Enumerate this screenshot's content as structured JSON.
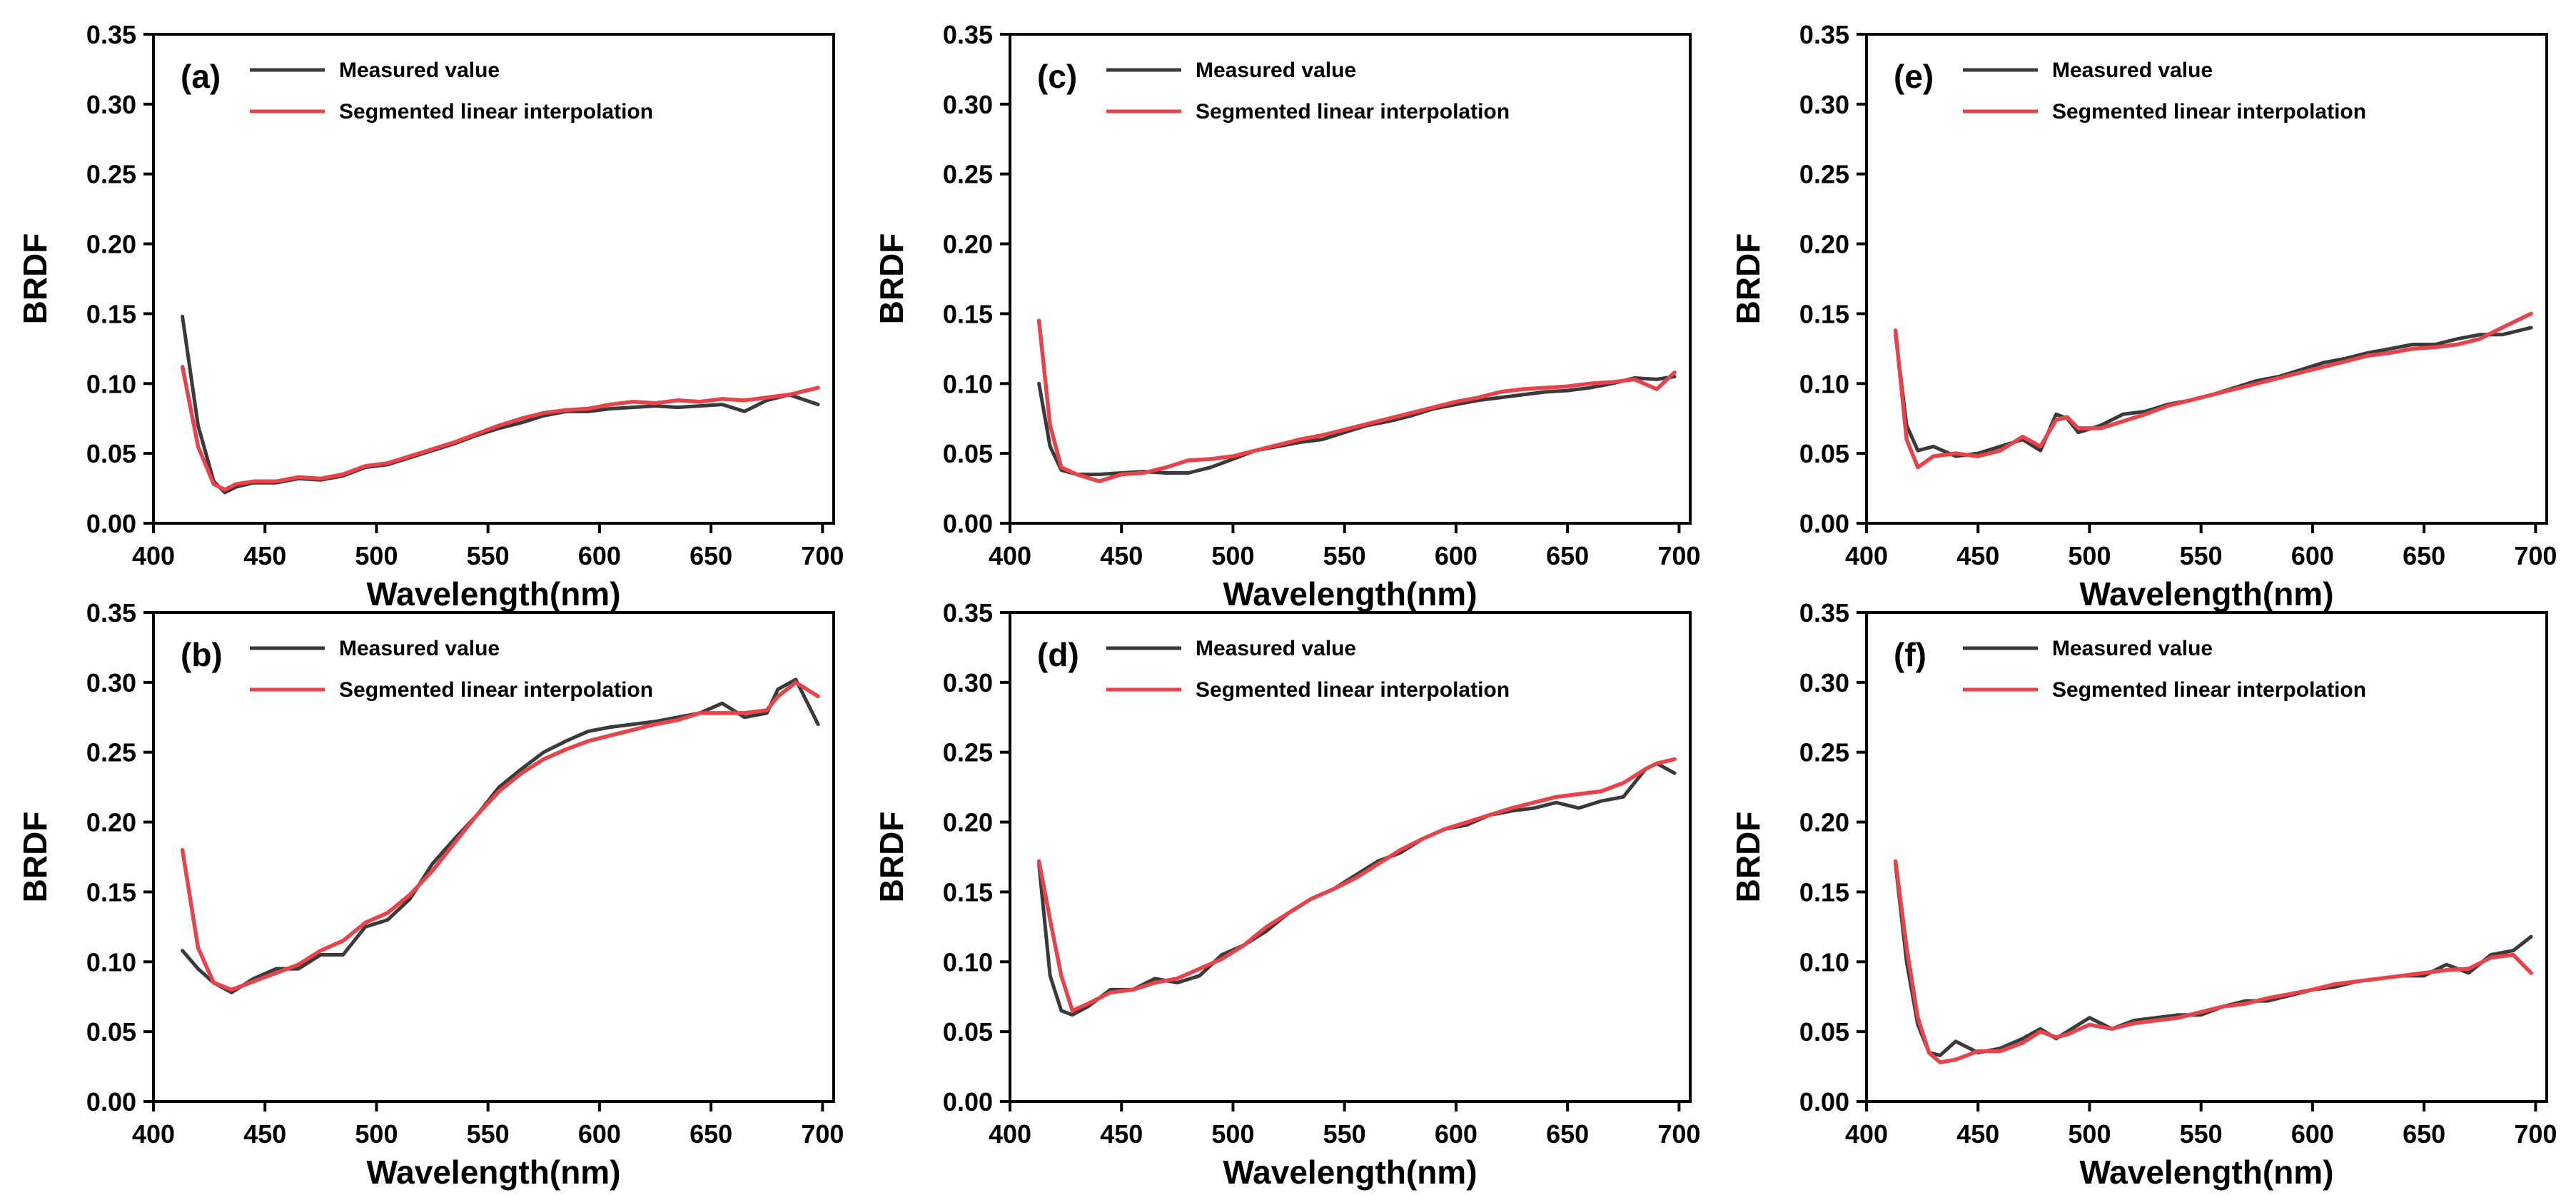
{
  "figure": {
    "colors": {
      "measured": "#3a3a3a",
      "interp": "#e8434a",
      "axis": "#000000"
    }
  },
  "chart_data": [
    {
      "type": "line",
      "panel_label": "(a)",
      "xlabel": "Wavelength(nm)",
      "ylabel": "BRDF",
      "xlim": [
        400,
        705
      ],
      "ylim": [
        0,
        0.35
      ],
      "xticks": [
        400,
        450,
        500,
        550,
        600,
        650,
        700
      ],
      "yticks": [
        0.0,
        0.05,
        0.1,
        0.15,
        0.2,
        0.25,
        0.3,
        0.35
      ],
      "legend_location": "top-left",
      "series": [
        {
          "name": "Measured value",
          "x": [
            413,
            420,
            427,
            432,
            437,
            445,
            455,
            465,
            475,
            485,
            495,
            505,
            515,
            525,
            535,
            545,
            555,
            565,
            575,
            585,
            595,
            605,
            615,
            625,
            635,
            645,
            655,
            665,
            675,
            685,
            698
          ],
          "y": [
            0.148,
            0.07,
            0.03,
            0.022,
            0.026,
            0.029,
            0.029,
            0.032,
            0.031,
            0.034,
            0.04,
            0.042,
            0.047,
            0.052,
            0.057,
            0.063,
            0.068,
            0.072,
            0.077,
            0.08,
            0.08,
            0.082,
            0.083,
            0.084,
            0.083,
            0.084,
            0.085,
            0.08,
            0.088,
            0.092,
            0.085
          ]
        },
        {
          "name": "Segmented linear interpolation",
          "x": [
            413,
            420,
            427,
            432,
            437,
            445,
            455,
            465,
            475,
            485,
            495,
            505,
            515,
            525,
            535,
            545,
            555,
            565,
            575,
            585,
            595,
            605,
            615,
            625,
            635,
            645,
            655,
            665,
            675,
            685,
            698
          ],
          "y": [
            0.112,
            0.055,
            0.028,
            0.024,
            0.028,
            0.03,
            0.03,
            0.033,
            0.032,
            0.035,
            0.041,
            0.043,
            0.048,
            0.053,
            0.058,
            0.064,
            0.07,
            0.075,
            0.079,
            0.081,
            0.082,
            0.085,
            0.087,
            0.086,
            0.088,
            0.087,
            0.089,
            0.088,
            0.09,
            0.092,
            0.097
          ]
        }
      ]
    },
    {
      "type": "line",
      "panel_label": "(b)",
      "xlabel": "Wavelength(nm)",
      "ylabel": "BRDF",
      "xlim": [
        400,
        705
      ],
      "ylim": [
        0,
        0.35
      ],
      "xticks": [
        400,
        450,
        500,
        550,
        600,
        650,
        700
      ],
      "yticks": [
        0.0,
        0.05,
        0.1,
        0.15,
        0.2,
        0.25,
        0.3,
        0.35
      ],
      "legend_location": "top-left",
      "series": [
        {
          "name": "Measured value",
          "x": [
            413,
            420,
            427,
            435,
            445,
            455,
            465,
            475,
            485,
            495,
            505,
            515,
            525,
            535,
            545,
            555,
            565,
            575,
            585,
            595,
            605,
            615,
            625,
            635,
            645,
            655,
            665,
            675,
            680,
            688,
            698
          ],
          "y": [
            0.108,
            0.095,
            0.085,
            0.078,
            0.088,
            0.095,
            0.095,
            0.105,
            0.105,
            0.125,
            0.13,
            0.145,
            0.17,
            0.188,
            0.205,
            0.225,
            0.238,
            0.25,
            0.258,
            0.265,
            0.268,
            0.27,
            0.272,
            0.275,
            0.278,
            0.285,
            0.275,
            0.278,
            0.295,
            0.302,
            0.27
          ]
        },
        {
          "name": "Segmented linear interpolation",
          "x": [
            413,
            420,
            427,
            435,
            445,
            455,
            465,
            475,
            485,
            495,
            505,
            515,
            525,
            535,
            545,
            555,
            565,
            575,
            585,
            595,
            605,
            615,
            625,
            635,
            645,
            655,
            665,
            675,
            680,
            688,
            698
          ],
          "y": [
            0.18,
            0.11,
            0.085,
            0.08,
            0.086,
            0.092,
            0.098,
            0.108,
            0.115,
            0.128,
            0.135,
            0.148,
            0.165,
            0.185,
            0.205,
            0.222,
            0.235,
            0.245,
            0.252,
            0.258,
            0.262,
            0.266,
            0.27,
            0.273,
            0.278,
            0.278,
            0.278,
            0.28,
            0.29,
            0.3,
            0.29
          ]
        }
      ]
    },
    {
      "type": "line",
      "panel_label": "(c)",
      "xlabel": "Wavelength(nm)",
      "ylabel": "BRDF",
      "xlim": [
        400,
        705
      ],
      "ylim": [
        0,
        0.35
      ],
      "xticks": [
        400,
        450,
        500,
        550,
        600,
        650,
        700
      ],
      "yticks": [
        0.0,
        0.05,
        0.1,
        0.15,
        0.2,
        0.25,
        0.3,
        0.35
      ],
      "legend_location": "top-left",
      "series": [
        {
          "name": "Measured value",
          "x": [
            413,
            418,
            423,
            430,
            440,
            450,
            460,
            470,
            480,
            490,
            500,
            510,
            520,
            530,
            540,
            550,
            560,
            570,
            580,
            590,
            600,
            610,
            620,
            630,
            640,
            650,
            660,
            670,
            680,
            690,
            698
          ],
          "y": [
            0.1,
            0.055,
            0.038,
            0.035,
            0.035,
            0.036,
            0.037,
            0.036,
            0.036,
            0.04,
            0.046,
            0.052,
            0.055,
            0.058,
            0.06,
            0.065,
            0.07,
            0.073,
            0.077,
            0.082,
            0.085,
            0.088,
            0.09,
            0.092,
            0.094,
            0.095,
            0.097,
            0.1,
            0.104,
            0.103,
            0.105
          ]
        },
        {
          "name": "Segmented linear interpolation",
          "x": [
            413,
            418,
            423,
            430,
            440,
            450,
            460,
            470,
            480,
            490,
            500,
            510,
            520,
            530,
            540,
            550,
            560,
            570,
            580,
            590,
            600,
            610,
            620,
            630,
            640,
            650,
            660,
            670,
            680,
            690,
            698
          ],
          "y": [
            0.145,
            0.07,
            0.04,
            0.035,
            0.03,
            0.035,
            0.036,
            0.04,
            0.045,
            0.046,
            0.048,
            0.052,
            0.056,
            0.06,
            0.063,
            0.067,
            0.071,
            0.075,
            0.079,
            0.083,
            0.087,
            0.09,
            0.094,
            0.096,
            0.097,
            0.098,
            0.1,
            0.101,
            0.103,
            0.096,
            0.108
          ]
        }
      ]
    },
    {
      "type": "line",
      "panel_label": "(d)",
      "xlabel": "Wavelength(nm)",
      "ylabel": "BRDF",
      "xlim": [
        400,
        705
      ],
      "ylim": [
        0,
        0.35
      ],
      "xticks": [
        400,
        450,
        500,
        550,
        600,
        650,
        700
      ],
      "yticks": [
        0.0,
        0.05,
        0.1,
        0.15,
        0.2,
        0.25,
        0.3,
        0.35
      ],
      "legend_location": "top-left",
      "series": [
        {
          "name": "Measured value",
          "x": [
            413,
            418,
            423,
            428,
            435,
            445,
            455,
            465,
            475,
            485,
            495,
            505,
            515,
            525,
            535,
            545,
            555,
            565,
            575,
            585,
            595,
            605,
            615,
            625,
            635,
            645,
            655,
            665,
            675,
            685,
            690,
            698
          ],
          "y": [
            0.17,
            0.09,
            0.065,
            0.062,
            0.068,
            0.08,
            0.08,
            0.088,
            0.085,
            0.09,
            0.105,
            0.112,
            0.122,
            0.135,
            0.145,
            0.152,
            0.162,
            0.172,
            0.178,
            0.188,
            0.195,
            0.198,
            0.205,
            0.208,
            0.21,
            0.214,
            0.21,
            0.215,
            0.218,
            0.238,
            0.242,
            0.235
          ]
        },
        {
          "name": "Segmented linear interpolation",
          "x": [
            413,
            418,
            423,
            428,
            435,
            445,
            455,
            465,
            475,
            485,
            495,
            505,
            515,
            525,
            535,
            545,
            555,
            565,
            575,
            585,
            595,
            605,
            615,
            625,
            635,
            645,
            655,
            665,
            675,
            685,
            690,
            698
          ],
          "y": [
            0.172,
            0.13,
            0.09,
            0.065,
            0.07,
            0.078,
            0.08,
            0.085,
            0.088,
            0.095,
            0.102,
            0.112,
            0.125,
            0.135,
            0.145,
            0.152,
            0.16,
            0.17,
            0.18,
            0.188,
            0.195,
            0.2,
            0.205,
            0.21,
            0.214,
            0.218,
            0.22,
            0.222,
            0.228,
            0.238,
            0.242,
            0.245
          ]
        }
      ]
    },
    {
      "type": "line",
      "panel_label": "(e)",
      "xlabel": "Wavelength(nm)",
      "ylabel": "BRDF",
      "xlim": [
        400,
        705
      ],
      "ylim": [
        0,
        0.35
      ],
      "xticks": [
        400,
        450,
        500,
        550,
        600,
        650,
        700
      ],
      "yticks": [
        0.0,
        0.05,
        0.1,
        0.15,
        0.2,
        0.25,
        0.3,
        0.35
      ],
      "legend_location": "top-left",
      "series": [
        {
          "name": "Measured value",
          "x": [
            413,
            418,
            423,
            430,
            440,
            450,
            460,
            470,
            478,
            485,
            490,
            495,
            505,
            515,
            525,
            535,
            545,
            555,
            565,
            575,
            585,
            595,
            605,
            615,
            625,
            635,
            645,
            655,
            665,
            675,
            685,
            698
          ],
          "y": [
            0.135,
            0.07,
            0.052,
            0.055,
            0.048,
            0.05,
            0.055,
            0.06,
            0.052,
            0.078,
            0.075,
            0.065,
            0.07,
            0.078,
            0.08,
            0.085,
            0.088,
            0.092,
            0.097,
            0.102,
            0.105,
            0.11,
            0.115,
            0.118,
            0.122,
            0.125,
            0.128,
            0.128,
            0.132,
            0.135,
            0.135,
            0.14
          ]
        },
        {
          "name": "Segmented linear interpolation",
          "x": [
            413,
            418,
            423,
            430,
            440,
            450,
            460,
            470,
            478,
            485,
            490,
            495,
            505,
            515,
            525,
            535,
            545,
            555,
            565,
            575,
            585,
            595,
            605,
            615,
            625,
            635,
            645,
            655,
            665,
            675,
            685,
            698
          ],
          "y": [
            0.138,
            0.06,
            0.04,
            0.048,
            0.05,
            0.048,
            0.052,
            0.062,
            0.055,
            0.074,
            0.076,
            0.068,
            0.068,
            0.073,
            0.078,
            0.084,
            0.088,
            0.092,
            0.096,
            0.1,
            0.104,
            0.108,
            0.112,
            0.116,
            0.12,
            0.122,
            0.125,
            0.126,
            0.128,
            0.132,
            0.14,
            0.15
          ]
        }
      ]
    },
    {
      "type": "line",
      "panel_label": "(f)",
      "xlabel": "Wavelength(nm)",
      "ylabel": "BRDF",
      "xlim": [
        400,
        705
      ],
      "ylim": [
        0,
        0.35
      ],
      "xticks": [
        400,
        450,
        500,
        550,
        600,
        650,
        700
      ],
      "yticks": [
        0.0,
        0.05,
        0.1,
        0.15,
        0.2,
        0.25,
        0.3,
        0.35
      ],
      "legend_location": "top-left",
      "series": [
        {
          "name": "Measured value",
          "x": [
            413,
            418,
            423,
            428,
            433,
            440,
            450,
            460,
            470,
            478,
            485,
            490,
            500,
            510,
            520,
            530,
            540,
            550,
            560,
            570,
            580,
            590,
            600,
            610,
            620,
            630,
            640,
            650,
            660,
            670,
            680,
            690,
            698
          ],
          "y": [
            0.17,
            0.1,
            0.055,
            0.035,
            0.033,
            0.043,
            0.035,
            0.038,
            0.045,
            0.052,
            0.045,
            0.05,
            0.06,
            0.052,
            0.058,
            0.06,
            0.062,
            0.062,
            0.068,
            0.072,
            0.072,
            0.076,
            0.08,
            0.082,
            0.086,
            0.088,
            0.09,
            0.09,
            0.098,
            0.092,
            0.105,
            0.108,
            0.118
          ]
        },
        {
          "name": "Segmented linear interpolation",
          "x": [
            413,
            418,
            423,
            428,
            433,
            440,
            450,
            460,
            470,
            478,
            485,
            490,
            500,
            510,
            520,
            530,
            540,
            550,
            560,
            570,
            580,
            590,
            600,
            610,
            620,
            630,
            640,
            650,
            660,
            670,
            680,
            690,
            698
          ],
          "y": [
            0.172,
            0.11,
            0.06,
            0.035,
            0.028,
            0.03,
            0.036,
            0.036,
            0.042,
            0.05,
            0.046,
            0.048,
            0.055,
            0.052,
            0.056,
            0.058,
            0.06,
            0.064,
            0.068,
            0.07,
            0.074,
            0.077,
            0.08,
            0.084,
            0.086,
            0.088,
            0.09,
            0.092,
            0.094,
            0.095,
            0.103,
            0.105,
            0.092
          ]
        }
      ]
    }
  ]
}
